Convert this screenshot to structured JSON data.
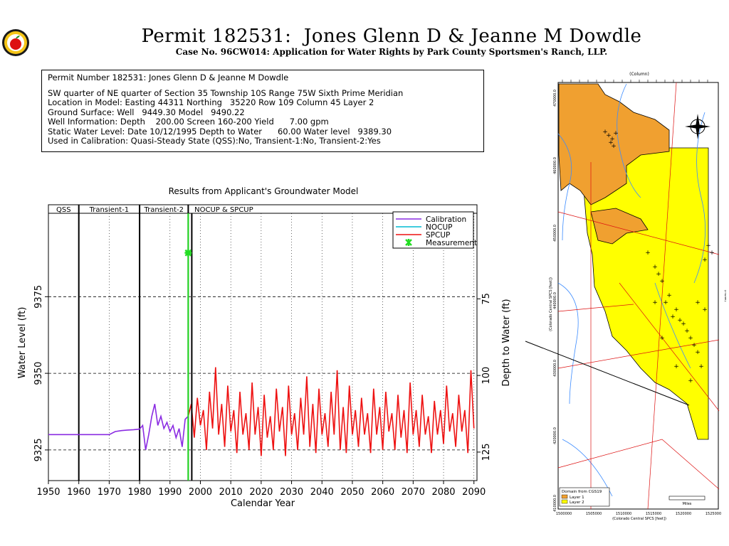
{
  "header": {
    "title": "Permit 182531:  Jones Glenn D & Jeanne M Dowdle",
    "subtitle": "Case No. 96CW014: Application for Water Rights by Park County Sportsmen's Ranch, LLP.",
    "logo_icon": "apple-logo-icon"
  },
  "info_box": {
    "lines": [
      "Permit Number 182531: Jones Glenn D & Jeanne M Dowdle",
      "SW quarter of NE quarter of Section 35 Township 10S Range 75W Sixth Prime Meridian",
      "Location in Model: Easting 44311 Northing   35220 Row 109 Column 45 Layer 2",
      "Ground Surface: Well   9449.30 Model   9490.22",
      "Well Information: Depth    200.00 Screen 160-200 Yield      7.00 gpm",
      "Static Water Level: Date 10/12/1995 Depth to Water      60.00 Water level   9389.30",
      "Used in Calibration: Quasi-Steady State (QSS):No, Transient-1:No, Transient-2:Yes"
    ]
  },
  "chart_data": {
    "type": "line",
    "title": "Results from Applicant's Groundwater Model",
    "xlabel": "Calendar Year",
    "ylabel": "Water Level (ft)",
    "ylabel_right": "Depth to Water (ft)",
    "xlim": [
      1950,
      2091
    ],
    "ylim": [
      9315,
      9405
    ],
    "x_ticks": [
      1950,
      1960,
      1970,
      1980,
      1990,
      2000,
      2010,
      2020,
      2030,
      2040,
      2050,
      2060,
      2070,
      2080,
      2090
    ],
    "y_ticks": [
      9325,
      9350,
      9375
    ],
    "y_ticks_right": [
      {
        "label": "75",
        "level": 9374.3
      },
      {
        "label": "100",
        "level": 9349.3
      },
      {
        "label": "125",
        "level": 9324.3
      }
    ],
    "periods": [
      {
        "label": "QSS",
        "start": 1950,
        "end": 1960
      },
      {
        "label": "Transient-1",
        "start": 1960,
        "end": 1980
      },
      {
        "label": "Transient-2",
        "start": 1980,
        "end": 1996
      },
      {
        "label": "NOCUP & SPCUP",
        "start": 1996,
        "end": 2091
      }
    ],
    "grid": true,
    "legend": {
      "placement": "top-right",
      "entries": [
        {
          "name": "Calibration",
          "color": "#8a2be2"
        },
        {
          "name": "NOCUP",
          "color": "#00bcd4"
        },
        {
          "name": "SPCUP",
          "color": "#ee1111"
        },
        {
          "name": "Measurement",
          "color": "#22dd22"
        }
      ]
    },
    "series": [
      {
        "name": "Calibration",
        "color": "#8a2be2",
        "x": [
          1950,
          1970,
          1972,
          1974,
          1976,
          1978,
          1980,
          1981,
          1982,
          1983,
          1984,
          1985,
          1986,
          1987,
          1988,
          1989,
          1990,
          1991,
          1992,
          1993,
          1994,
          1995,
          1996
        ],
        "y": [
          9330,
          9330,
          9331,
          9331.3,
          9331.5,
          9331.6,
          9331.8,
          9333,
          9325,
          9330,
          9336,
          9340,
          9333,
          9336,
          9332,
          9334,
          9331,
          9333,
          9329,
          9332,
          9326,
          9335,
          9336
        ]
      },
      {
        "name": "SPCUP",
        "color": "#ee1111",
        "x": [
          1996,
          1997,
          1998,
          1999,
          2000,
          2001,
          2002,
          2003,
          2004,
          2005,
          2006,
          2007,
          2008,
          2009,
          2010,
          2011,
          2012,
          2013,
          2014,
          2015,
          2016,
          2017,
          2018,
          2019,
          2020,
          2021,
          2022,
          2023,
          2024,
          2025,
          2026,
          2027,
          2028,
          2029,
          2030,
          2031,
          2032,
          2033,
          2034,
          2035,
          2036,
          2037,
          2038,
          2039,
          2040,
          2041,
          2042,
          2043,
          2044,
          2045,
          2046,
          2047,
          2048,
          2049,
          2050,
          2051,
          2052,
          2053,
          2054,
          2055,
          2056,
          2057,
          2058,
          2059,
          2060,
          2061,
          2062,
          2063,
          2064,
          2065,
          2066,
          2067,
          2068,
          2069,
          2070,
          2071,
          2072,
          2073,
          2074,
          2075,
          2076,
          2077,
          2078,
          2079,
          2080,
          2081,
          2082,
          2083,
          2084,
          2085,
          2086,
          2087,
          2088,
          2089,
          2090
        ],
        "y": [
          9336,
          9340,
          9329,
          9342,
          9333,
          9338,
          9325,
          9344,
          9332,
          9352,
          9330,
          9340,
          9326,
          9346,
          9331,
          9338,
          9324,
          9344,
          9330,
          9337,
          9325,
          9347,
          9330,
          9339,
          9323,
          9343,
          9329,
          9336,
          9325,
          9345,
          9331,
          9339,
          9323,
          9346,
          9330,
          9337,
          9325,
          9342,
          9330,
          9349,
          9326,
          9340,
          9324,
          9345,
          9330,
          9337,
          9326,
          9344,
          9330,
          9351,
          9325,
          9339,
          9324,
          9346,
          9330,
          9338,
          9326,
          9342,
          9330,
          9337,
          9324,
          9345,
          9330,
          9339,
          9325,
          9344,
          9331,
          9337,
          9325,
          9343,
          9329,
          9338,
          9324,
          9347,
          9330,
          9338,
          9326,
          9343,
          9330,
          9336,
          9324,
          9341,
          9330,
          9338,
          9327,
          9346,
          9331,
          9337,
          9326,
          9343,
          9331,
          9338,
          9324,
          9351,
          9332
        ]
      }
    ],
    "measurement": {
      "x": 1996,
      "y": 9389.3
    }
  },
  "map": {
    "column_label": "(Column)",
    "row_label": "(Row)",
    "easting_label": "(Colorado Central SPCS [feet])",
    "northing_label": "(Colorado Central SPCS [feet])",
    "x_ticks": [
      "1500000",
      "1505000",
      "1510000",
      "1515000",
      "1520000",
      "1525000"
    ],
    "y_ticks": [
      "470000.0",
      "460000.0",
      "450000.0",
      "440000.0",
      "430000.0",
      "420000.0",
      "410000.0"
    ],
    "legend_title": "Domain from CGS19",
    "legend_layer1": "Layer 1",
    "legend_layer2": "Layer 2",
    "layer1_color": "#f0a030",
    "layer2_color": "#ffff00",
    "compass_icon": "north-arrow-compass-icon",
    "scale_label": "Miles"
  }
}
